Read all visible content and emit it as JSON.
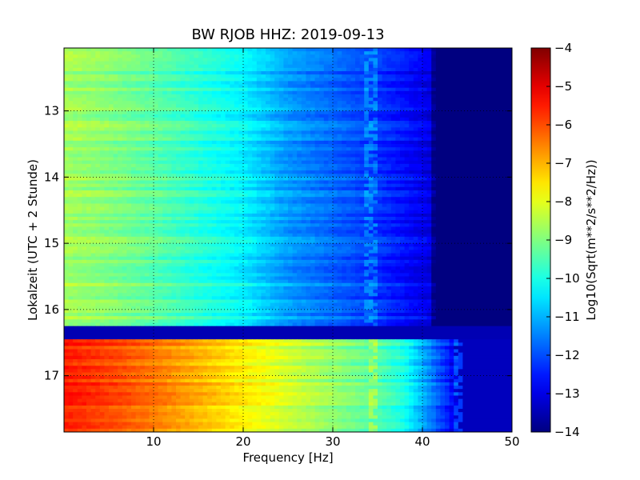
{
  "chart_data": {
    "type": "heatmap",
    "title": "BW RJOB HHZ: 2019-09-13",
    "xlabel": "Frequency [Hz]",
    "ylabel": "Lokalzeit (UTC + 2 Stunde)",
    "xlim": [
      0,
      50
    ],
    "ylim": [
      12.05,
      17.85
    ],
    "y_inverted": true,
    "x_ticks": [
      10,
      20,
      30,
      40,
      50
    ],
    "x_tick_labels": [
      "10",
      "20",
      "30",
      "40",
      "50"
    ],
    "y_ticks": [
      13,
      14,
      15,
      16,
      17
    ],
    "y_tick_labels": [
      "13",
      "14",
      "15",
      "16",
      "17"
    ],
    "grid": true,
    "colormap": "jet",
    "colorbar": {
      "label": "Log10(Sqrt(m**2/s**2/Hz))",
      "range": [
        -14,
        -4
      ],
      "ticks": [
        -4,
        -5,
        -6,
        -7,
        -8,
        -9,
        -10,
        -11,
        -12,
        -13,
        -14
      ],
      "tick_labels": [
        "−4",
        "−5",
        "−6",
        "−7",
        "−8",
        "−9",
        "−10",
        "−11",
        "−12",
        "−13",
        "−14"
      ]
    },
    "segments": [
      {
        "time_range": [
          12.05,
          16.25
        ],
        "profile_hz": [
          0,
          5,
          10,
          15,
          20,
          25,
          30,
          35,
          38,
          41,
          41.3,
          50
        ],
        "profile_value": [
          -8.6,
          -8.9,
          -9.3,
          -9.8,
          -10.3,
          -11.2,
          -11.7,
          -12.2,
          -12.6,
          -13.0,
          -14.0,
          -14.0
        ],
        "line_hz": 34.2
      },
      {
        "time_range": [
          16.25,
          16.45
        ],
        "profile_hz": [
          0,
          50
        ],
        "profile_value": [
          -13.5,
          -13.5
        ]
      },
      {
        "time_range": [
          16.45,
          17.85
        ],
        "profile_hz": [
          0,
          5,
          10,
          15,
          20,
          25,
          30,
          35,
          38,
          40,
          43,
          44,
          50
        ],
        "profile_value": [
          -5.5,
          -5.9,
          -6.4,
          -7.0,
          -7.6,
          -8.2,
          -8.8,
          -9.4,
          -10.0,
          -11.0,
          -12.5,
          -13.4,
          -13.4
        ],
        "line_hz": 34.5,
        "line2_hz": 44.0
      }
    ]
  }
}
